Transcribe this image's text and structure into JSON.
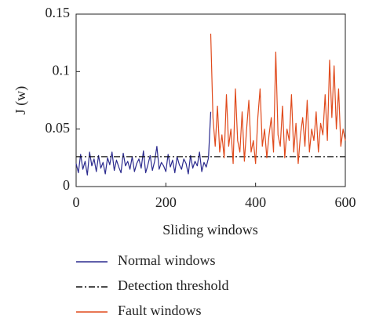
{
  "chart_data": {
    "type": "line",
    "x_label": "Sliding windows",
    "y_label": "J (w)",
    "xlim": [
      0,
      600
    ],
    "ylim": [
      0,
      0.15
    ],
    "xticks": [
      0,
      200,
      400,
      600
    ],
    "yticks": [
      0,
      0.05,
      0.1,
      0.15
    ],
    "legend": "bottom",
    "series": [
      {
        "name": "Normal windows",
        "color": "#2b2a8e",
        "dash": "solid",
        "x": [
          0,
          5,
          10,
          15,
          20,
          25,
          30,
          35,
          40,
          45,
          50,
          55,
          60,
          65,
          70,
          75,
          80,
          85,
          90,
          95,
          100,
          105,
          110,
          115,
          120,
          125,
          130,
          135,
          140,
          145,
          150,
          155,
          160,
          165,
          170,
          175,
          180,
          185,
          190,
          195,
          200,
          205,
          210,
          215,
          220,
          225,
          230,
          235,
          240,
          245,
          250,
          255,
          260,
          265,
          270,
          275,
          280,
          285,
          290,
          295,
          300
        ],
        "values": [
          0.02,
          0.012,
          0.028,
          0.015,
          0.022,
          0.01,
          0.03,
          0.018,
          0.024,
          0.013,
          0.027,
          0.016,
          0.021,
          0.011,
          0.025,
          0.019,
          0.03,
          0.014,
          0.023,
          0.017,
          0.012,
          0.029,
          0.018,
          0.022,
          0.015,
          0.026,
          0.013,
          0.02,
          0.024,
          0.016,
          0.031,
          0.012,
          0.019,
          0.027,
          0.014,
          0.022,
          0.035,
          0.015,
          0.021,
          0.018,
          0.013,
          0.028,
          0.017,
          0.023,
          0.012,
          0.026,
          0.019,
          0.015,
          0.024,
          0.02,
          0.011,
          0.027,
          0.016,
          0.022,
          0.018,
          0.03,
          0.013,
          0.021,
          0.017,
          0.025,
          0.065
        ]
      },
      {
        "name": "Detection threshold",
        "color": "#111111",
        "dash": "dashdot",
        "x": [
          0,
          600
        ],
        "values": [
          0.026,
          0.026
        ]
      },
      {
        "name": "Fault windows",
        "color": "#e04a1c",
        "dash": "solid",
        "x": [
          300,
          305,
          310,
          315,
          320,
          325,
          330,
          335,
          340,
          345,
          350,
          355,
          360,
          365,
          370,
          375,
          380,
          385,
          390,
          395,
          400,
          405,
          410,
          415,
          420,
          425,
          430,
          435,
          440,
          445,
          450,
          455,
          460,
          465,
          470,
          475,
          480,
          485,
          490,
          495,
          500,
          505,
          510,
          515,
          520,
          525,
          530,
          535,
          540,
          545,
          550,
          555,
          560,
          565,
          570,
          575,
          580,
          585,
          590,
          595,
          600
        ],
        "values": [
          0.133,
          0.06,
          0.035,
          0.07,
          0.03,
          0.045,
          0.025,
          0.08,
          0.035,
          0.05,
          0.02,
          0.085,
          0.04,
          0.03,
          0.065,
          0.022,
          0.05,
          0.075,
          0.03,
          0.04,
          0.02,
          0.06,
          0.085,
          0.035,
          0.05,
          0.025,
          0.045,
          0.06,
          0.03,
          0.117,
          0.045,
          0.035,
          0.07,
          0.025,
          0.05,
          0.04,
          0.08,
          0.03,
          0.055,
          0.02,
          0.045,
          0.06,
          0.035,
          0.075,
          0.03,
          0.05,
          0.04,
          0.065,
          0.03,
          0.055,
          0.045,
          0.08,
          0.04,
          0.11,
          0.06,
          0.105,
          0.05,
          0.085,
          0.035,
          0.05,
          0.04
        ]
      }
    ]
  }
}
